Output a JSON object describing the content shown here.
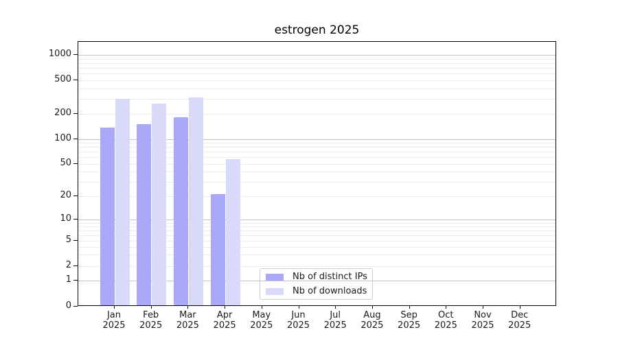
{
  "title": "estrogen 2025",
  "chart_data": {
    "type": "bar",
    "title": "estrogen 2025",
    "x": [
      "Jan",
      "Feb",
      "Mar",
      "Apr",
      "May",
      "Jun",
      "Jul",
      "Aug",
      "Sep",
      "Oct",
      "Nov",
      "Dec"
    ],
    "year_label": "2025",
    "series": [
      {
        "name": "Nb of distinct IPs",
        "color": "#a9a9f7",
        "values": [
          137,
          150,
          182,
          21,
          0,
          0,
          0,
          0,
          0,
          0,
          0,
          0
        ]
      },
      {
        "name": "Nb of downloads",
        "color": "#d9d9f9",
        "values": [
          300,
          265,
          312,
          57,
          0,
          0,
          0,
          0,
          0,
          0,
          0,
          0
        ]
      }
    ],
    "yscale": "symlog",
    "yticks": [
      0,
      1,
      2,
      5,
      10,
      20,
      50,
      100,
      200,
      500,
      1000
    ],
    "ylim": [
      0,
      1400
    ],
    "xlabel": "",
    "ylabel": "",
    "grid": true,
    "legend": {
      "position": "lower-center",
      "labels": [
        "Nb of distinct IPs",
        "Nb of downloads"
      ]
    }
  },
  "colors": {
    "bar_distinct_ips": "#a9a9f7",
    "bar_downloads": "#d9d9f9",
    "major_grid": "#c4c4c8",
    "minor_grid": "#ebebee",
    "axis": "#000000",
    "background": "#ffffff"
  }
}
